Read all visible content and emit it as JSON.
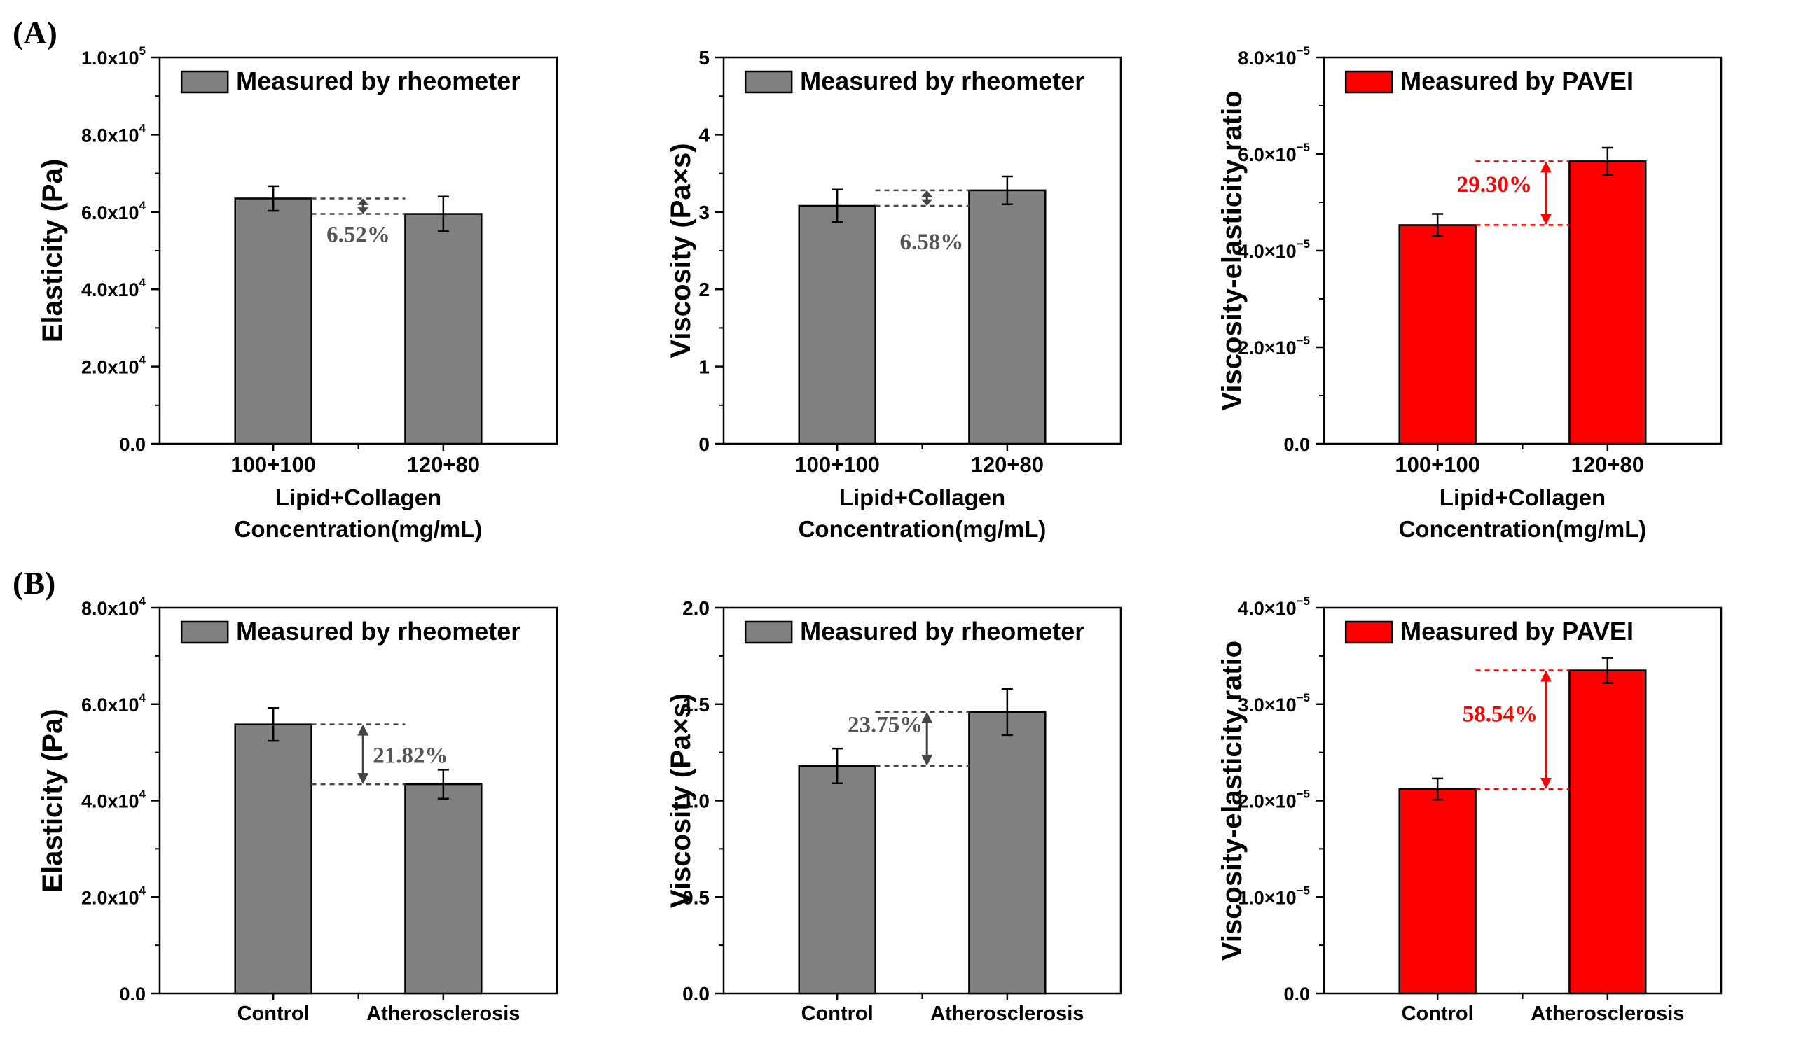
{
  "panel_labels": [
    "(A)",
    "(B)"
  ],
  "chart_data": [
    {
      "panel": "(A)",
      "type": "bar",
      "categories": [
        "100+100",
        "120+80"
      ],
      "xlabel_lines": [
        "Lipid+Collagen",
        "Concentration(mg/mL)"
      ],
      "ylabel": "Elasticity (Pa)",
      "ylim": [
        0,
        100000
      ],
      "yticks": [
        0,
        20000,
        40000,
        60000,
        80000,
        100000
      ],
      "yticklabels": [
        {
          "mant": "0.0",
          "exp": ""
        },
        {
          "mant": "2.0x10",
          "exp": "4"
        },
        {
          "mant": "4.0x10",
          "exp": "4"
        },
        {
          "mant": "6.0x10",
          "exp": "4"
        },
        {
          "mant": "8.0x10",
          "exp": "4"
        },
        {
          "mant": "1.0x10",
          "exp": "5"
        }
      ],
      "series": [
        {
          "name": "Measured by rheometer",
          "color": "#808080",
          "values": [
            63500,
            59500
          ],
          "errors": [
            3200,
            4500
          ]
        }
      ],
      "annotation": {
        "text": "6.52%",
        "color": "#555555",
        "style": "dashed"
      }
    },
    {
      "panel": "(A)",
      "type": "bar",
      "categories": [
        "100+100",
        "120+80"
      ],
      "xlabel_lines": [
        "Lipid+Collagen",
        "Concentration(mg/mL)"
      ],
      "ylabel": "Viscosity (Pa×s)",
      "ylim": [
        0,
        5
      ],
      "yticks": [
        0,
        1,
        2,
        3,
        4,
        5
      ],
      "yticklabels": [
        {
          "mant": "0",
          "exp": ""
        },
        {
          "mant": "1",
          "exp": ""
        },
        {
          "mant": "2",
          "exp": ""
        },
        {
          "mant": "3",
          "exp": ""
        },
        {
          "mant": "4",
          "exp": ""
        },
        {
          "mant": "5",
          "exp": ""
        }
      ],
      "series": [
        {
          "name": "Measured by rheometer",
          "color": "#808080",
          "values": [
            3.08,
            3.28
          ],
          "errors": [
            0.21,
            0.18
          ]
        }
      ],
      "annotation": {
        "text": "6.58%",
        "color": "#555555",
        "style": "dashed"
      }
    },
    {
      "panel": "(A)",
      "type": "bar",
      "categories": [
        "100+100",
        "120+80"
      ],
      "xlabel_lines": [
        "Lipid+Collagen",
        "Concentration(mg/mL)"
      ],
      "ylabel": "Viscosity-elasticity ratio",
      "ylim": [
        0,
        8e-05
      ],
      "yticks": [
        0,
        2e-05,
        4e-05,
        6e-05,
        8e-05
      ],
      "yticklabels": [
        {
          "mant": "0.0",
          "exp": ""
        },
        {
          "mant": "2.0×10",
          "exp": "−5"
        },
        {
          "mant": "4.0×10",
          "exp": "−5"
        },
        {
          "mant": "6.0×10",
          "exp": "−5"
        },
        {
          "mant": "8.0×10",
          "exp": "−5"
        }
      ],
      "series": [
        {
          "name": "Measured by PAVEI",
          "color": "#ff0000",
          "values": [
            4.53e-05,
            5.85e-05
          ],
          "errors": [
            2.3e-06,
            2.8e-06
          ]
        }
      ],
      "annotation": {
        "text": "29.30%",
        "color": "#ff0000",
        "style": "dashed"
      }
    },
    {
      "panel": "(B)",
      "type": "bar",
      "categories": [
        "Control",
        "Atherosclerosis"
      ],
      "xlabel_lines": [],
      "ylabel": "Elasticity (Pa)",
      "ylim": [
        0,
        80000
      ],
      "yticks": [
        0,
        20000,
        40000,
        60000,
        80000
      ],
      "yticklabels": [
        {
          "mant": "0.0",
          "exp": ""
        },
        {
          "mant": "2.0x10",
          "exp": "4"
        },
        {
          "mant": "4.0x10",
          "exp": "4"
        },
        {
          "mant": "6.0x10",
          "exp": "4"
        },
        {
          "mant": "8.0x10",
          "exp": "4"
        }
      ],
      "series": [
        {
          "name": "Measured by rheometer",
          "color": "#808080",
          "values": [
            55800,
            43400
          ],
          "errors": [
            3400,
            3000
          ]
        }
      ],
      "annotation": {
        "text": "21.82%",
        "color": "#555555",
        "style": "dashed"
      }
    },
    {
      "panel": "(B)",
      "type": "bar",
      "categories": [
        "Control",
        "Atherosclerosis"
      ],
      "xlabel_lines": [],
      "ylabel": "Viscosity (Pa×s)",
      "ylim": [
        0,
        2.0
      ],
      "yticks": [
        0,
        0.5,
        1.0,
        1.5,
        2.0
      ],
      "yticklabels": [
        {
          "mant": "0.0",
          "exp": ""
        },
        {
          "mant": "0.5",
          "exp": ""
        },
        {
          "mant": "1.0",
          "exp": ""
        },
        {
          "mant": "1.5",
          "exp": ""
        },
        {
          "mant": "2.0",
          "exp": ""
        }
      ],
      "series": [
        {
          "name": "Measured by rheometer",
          "color": "#808080",
          "values": [
            1.18,
            1.46
          ],
          "errors": [
            0.09,
            0.12
          ]
        }
      ],
      "annotation": {
        "text": "23.75%",
        "color": "#555555",
        "style": "dashed"
      }
    },
    {
      "panel": "(B)",
      "type": "bar",
      "categories": [
        "Control",
        "Atherosclerosis"
      ],
      "xlabel_lines": [],
      "ylabel": "Viscosity-elasticity ratio",
      "ylim": [
        0,
        4e-05
      ],
      "yticks": [
        0,
        1e-05,
        2e-05,
        3e-05,
        4e-05
      ],
      "yticklabels": [
        {
          "mant": "0.0",
          "exp": ""
        },
        {
          "mant": "1.0×10",
          "exp": "−5"
        },
        {
          "mant": "2.0×10",
          "exp": "−5"
        },
        {
          "mant": "3.0×10",
          "exp": "−5"
        },
        {
          "mant": "4.0×10",
          "exp": "−5"
        }
      ],
      "series": [
        {
          "name": "Measured by PAVEI",
          "color": "#ff0000",
          "values": [
            2.12e-05,
            3.35e-05
          ],
          "errors": [
            1.1e-06,
            1.3e-06
          ]
        }
      ],
      "annotation": {
        "text": "58.54%",
        "color": "#ff0000",
        "style": "dashed"
      }
    }
  ]
}
